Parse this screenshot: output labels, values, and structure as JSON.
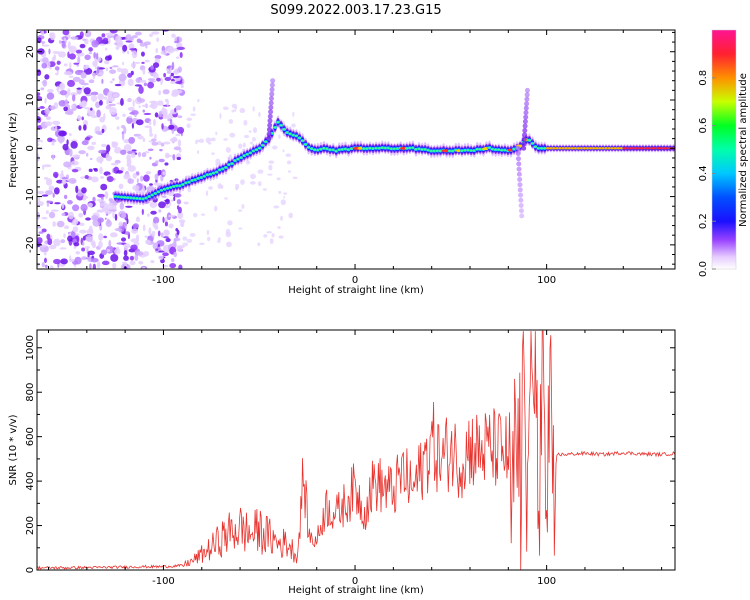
{
  "title": "S099.2022.003.17.23.G15",
  "chart_data": [
    {
      "type": "heatmap",
      "xlabel": "Height of straight line (km)",
      "ylabel": "Frequency (Hz)",
      "xlim": [
        -166,
        167
      ],
      "ylim": [
        -25,
        24.5
      ],
      "x_ticks": [
        -100,
        0,
        100
      ],
      "y_ticks": [
        -20,
        -10,
        0,
        10,
        20
      ],
      "colorbar": {
        "label": "Normalized spectral amplitude",
        "range": [
          0,
          1
        ],
        "ticks": [
          "0.0",
          "0.2",
          "0.4",
          "0.6",
          "0.8"
        ],
        "colors": [
          "#ffffff",
          "#cc99ff",
          "#7a1cf0",
          "#1010ff",
          "#00c8ff",
          "#00ff55",
          "#d8ff00",
          "#ff9000",
          "#ff1e3c",
          "#ff1493"
        ]
      },
      "ridge": {
        "x": [
          -125,
          -110,
          -100,
          -90,
          -80,
          -70,
          -60,
          -50,
          -45,
          -40,
          -35,
          -30,
          -25,
          -20,
          -15,
          -10,
          0,
          10,
          20,
          30,
          40,
          50,
          60,
          70,
          80,
          85,
          90,
          95,
          100,
          110,
          120,
          130,
          140,
          150,
          167
        ],
        "y": [
          -10,
          -10.5,
          -8.5,
          -7.5,
          -6,
          -4.5,
          -2,
          0,
          2,
          5.5,
          3,
          2.5,
          0.5,
          -0.5,
          0,
          -0.5,
          0,
          0,
          0,
          0,
          -0.5,
          -0.5,
          -0.5,
          0,
          -0.5,
          0,
          2,
          0,
          0,
          0,
          0,
          0,
          0,
          0,
          0
        ]
      }
    },
    {
      "type": "line",
      "xlabel": "Height of straight line (km)",
      "ylabel": "SNR (10 * v/v)",
      "xlim": [
        -166,
        167
      ],
      "ylim": [
        0,
        1080
      ],
      "x_ticks": [
        -100,
        0,
        100
      ],
      "y_ticks": [
        0,
        200,
        400,
        600,
        800,
        1000
      ],
      "color": "#e8342f",
      "series": [
        {
          "x": [
            -166,
            -150,
            -130,
            -110,
            -100,
            -90,
            -85,
            -80,
            -75,
            -70,
            -65,
            -60,
            -55,
            -50,
            -45,
            -40,
            -35,
            -30,
            -27,
            -24,
            -20,
            -15,
            -10,
            -5,
            0,
            5,
            10,
            15,
            20,
            25,
            30,
            35,
            40,
            45,
            50,
            55,
            60,
            65,
            70,
            75,
            80,
            82,
            84,
            86,
            88,
            90,
            92,
            94,
            96,
            98,
            100,
            102,
            104,
            105,
            110,
            120,
            130,
            140,
            150,
            160,
            167
          ],
          "y": [
            10,
            10,
            12,
            15,
            15,
            20,
            40,
            70,
            100,
            140,
            170,
            190,
            160,
            180,
            150,
            120,
            120,
            60,
            430,
            150,
            130,
            290,
            250,
            300,
            370,
            260,
            400,
            370,
            350,
            440,
            360,
            460,
            580,
            490,
            550,
            480,
            560,
            530,
            550,
            540,
            520,
            150,
            880,
            100,
            900,
            300,
            1000,
            900,
            200,
            950,
            80,
            1050,
            60,
            520,
            520,
            525,
            520,
            528,
            522,
            520,
            525
          ]
        }
      ]
    }
  ]
}
